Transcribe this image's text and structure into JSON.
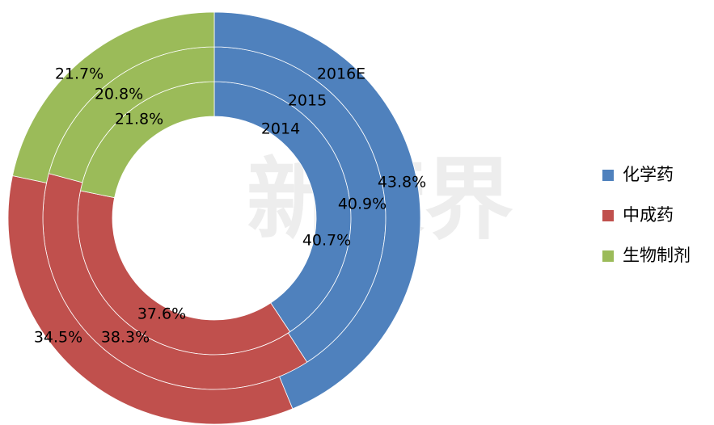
{
  "chart_data": {
    "type": "donut",
    "categories": [
      "化学药",
      "中成药",
      "生物制剂"
    ],
    "colors": [
      "#4f81bd",
      "#c0504d",
      "#9bbb59"
    ],
    "series": [
      {
        "name": "2014",
        "values": [
          40.7,
          37.6,
          21.8
        ]
      },
      {
        "name": "2015",
        "values": [
          40.9,
          38.3,
          20.8
        ]
      },
      {
        "name": "2016E",
        "values": [
          43.8,
          34.5,
          21.7
        ]
      }
    ],
    "value_labels": [
      [
        "40.7%",
        "37.6%",
        "21.8%"
      ],
      [
        "40.9%",
        "38.3%",
        "20.8%"
      ],
      [
        "43.8%",
        "34.5%",
        "21.7%"
      ]
    ],
    "legend": "right",
    "watermark": "新康界"
  }
}
